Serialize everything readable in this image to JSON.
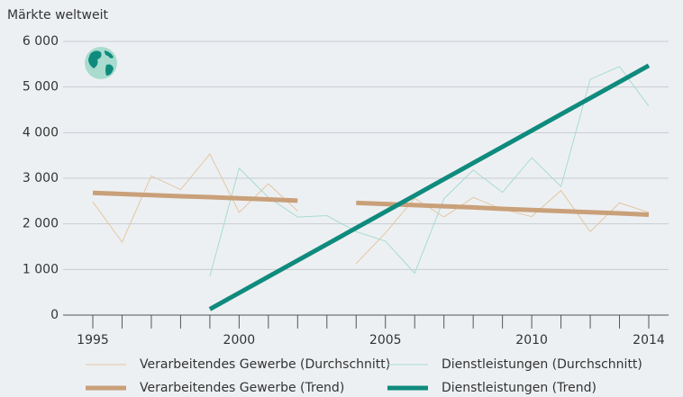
{
  "chart_data": {
    "type": "line",
    "title": "Märkte weltweit",
    "x": [
      1995,
      1996,
      1997,
      1998,
      1999,
      2000,
      2001,
      2002,
      2003,
      2004,
      2005,
      2006,
      2007,
      2008,
      2009,
      2010,
      2011,
      2012,
      2013,
      2014
    ],
    "xlim": [
      1995,
      2014
    ],
    "xticks": [
      1995,
      2000,
      2005,
      2010,
      2014
    ],
    "ylim": [
      0,
      6000
    ],
    "yticks": [
      {
        "value": 0,
        "label": "0"
      },
      {
        "value": 1000,
        "label": "1 000"
      },
      {
        "value": 2000,
        "label": "2 000"
      },
      {
        "value": 3000,
        "label": "3 000"
      },
      {
        "value": 4000,
        "label": "4 000"
      },
      {
        "value": 5000,
        "label": "5 000"
      },
      {
        "value": 6000,
        "label": "6 000"
      }
    ],
    "grid": true,
    "series": [
      {
        "name": "Verarbeitendes Gewerbe (Durchschnitt)",
        "color": "#e3c7a3",
        "values": [
          2480,
          1600,
          3050,
          2750,
          3530,
          2250,
          2880,
          2280,
          null,
          1130,
          1800,
          2560,
          2150,
          2580,
          2320,
          2160,
          2730,
          1830,
          2460,
          2250
        ]
      },
      {
        "name": "Dienstleistungen (Durchschnitt)",
        "color": "#a6ddd0",
        "values": [
          null,
          null,
          null,
          null,
          850,
          3220,
          2580,
          2150,
          2180,
          1830,
          1620,
          920,
          2550,
          3180,
          2690,
          3450,
          2820,
          5170,
          5450,
          4580
        ]
      },
      {
        "name": "Verarbeitendes Gewerbe (Trend)",
        "color": "#c9a079",
        "values": [
          2680,
          2655,
          2630,
          2605,
          2585,
          2560,
          2535,
          2510,
          null,
          2460,
          2435,
          2410,
          2385,
          2360,
          2330,
          2305,
          2280,
          2255,
          2230,
          2200
        ]
      },
      {
        "name": "Dienstleistungen (Trend)",
        "color": "#0f8b7d",
        "values": [
          null,
          null,
          null,
          null,
          130,
          486,
          842,
          1198,
          1554,
          1910,
          2266,
          2622,
          2978,
          3334,
          3690,
          4046,
          4402,
          4758,
          5114,
          5470
        ]
      }
    ]
  }
}
